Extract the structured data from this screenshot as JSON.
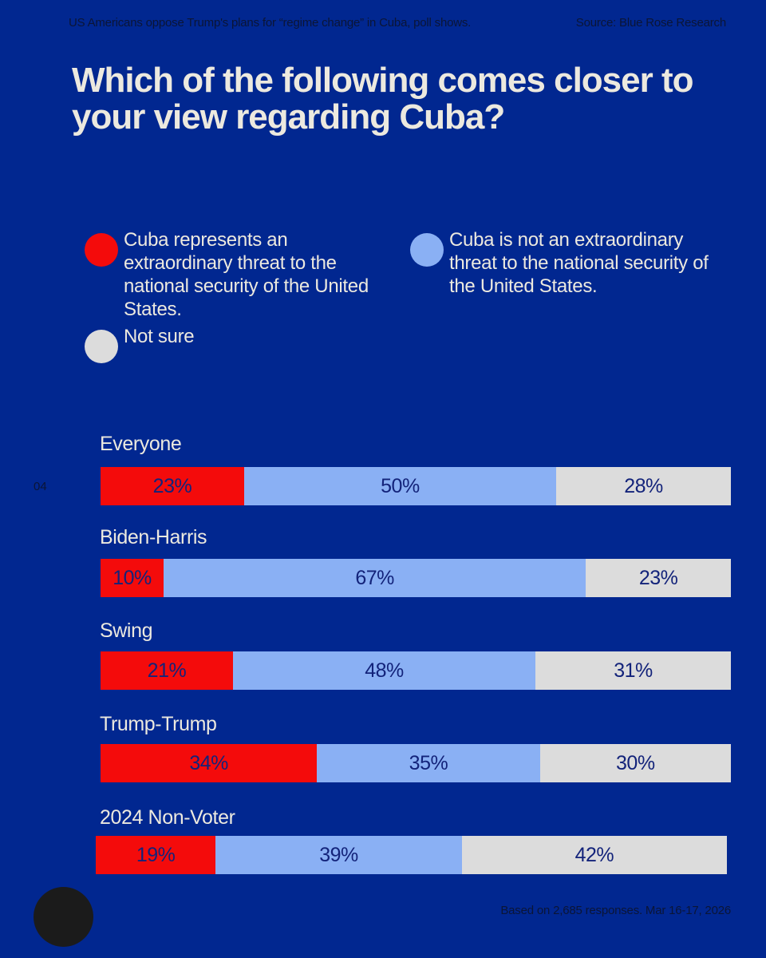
{
  "header": {
    "left": "US Americans oppose Trump's plans for “regime change” in Cuba, poll shows.",
    "right": "Source: Blue Rose Research"
  },
  "title": "Which of the following comes closer to your view regarding Cuba?",
  "page_number": "04",
  "footer": "Based on 2,685 responses. Mar 16-17, 2026",
  "colors": {
    "background": "#012790",
    "threat": "#f40b0b",
    "not_threat": "#8ab0f4",
    "not_sure": "#dcdcdc",
    "value_text": "#13237a"
  },
  "chart_data": {
    "type": "bar",
    "orientation": "horizontal",
    "stacked": true,
    "title": "Which of the following comes closer to your view regarding Cuba?",
    "legend": [
      {
        "key": "threat",
        "label": "Cuba represents an extraordinary threat to the national security of the United States."
      },
      {
        "key": "not_threat",
        "label": "Cuba is not an extraordinary threat to the national security of the United States."
      },
      {
        "key": "not_sure",
        "label": "Not sure"
      }
    ],
    "categories": [
      "Everyone",
      "Biden-Harris",
      "Swing",
      "Trump-Trump",
      "2024 Non-Voter"
    ],
    "series": [
      {
        "name": "threat",
        "values": [
          23,
          10,
          21,
          34,
          19
        ]
      },
      {
        "name": "not_threat",
        "values": [
          50,
          67,
          48,
          35,
          39
        ]
      },
      {
        "name": "not_sure",
        "values": [
          28,
          23,
          31,
          30,
          42
        ]
      }
    ],
    "value_labels": [
      [
        "23%",
        "50%",
        "28%"
      ],
      [
        "10%",
        "67%",
        "23%"
      ],
      [
        "21%",
        "48%",
        "31%"
      ],
      [
        "34%",
        "35%",
        "30%"
      ],
      [
        "19%",
        "39%",
        "42%"
      ]
    ]
  }
}
